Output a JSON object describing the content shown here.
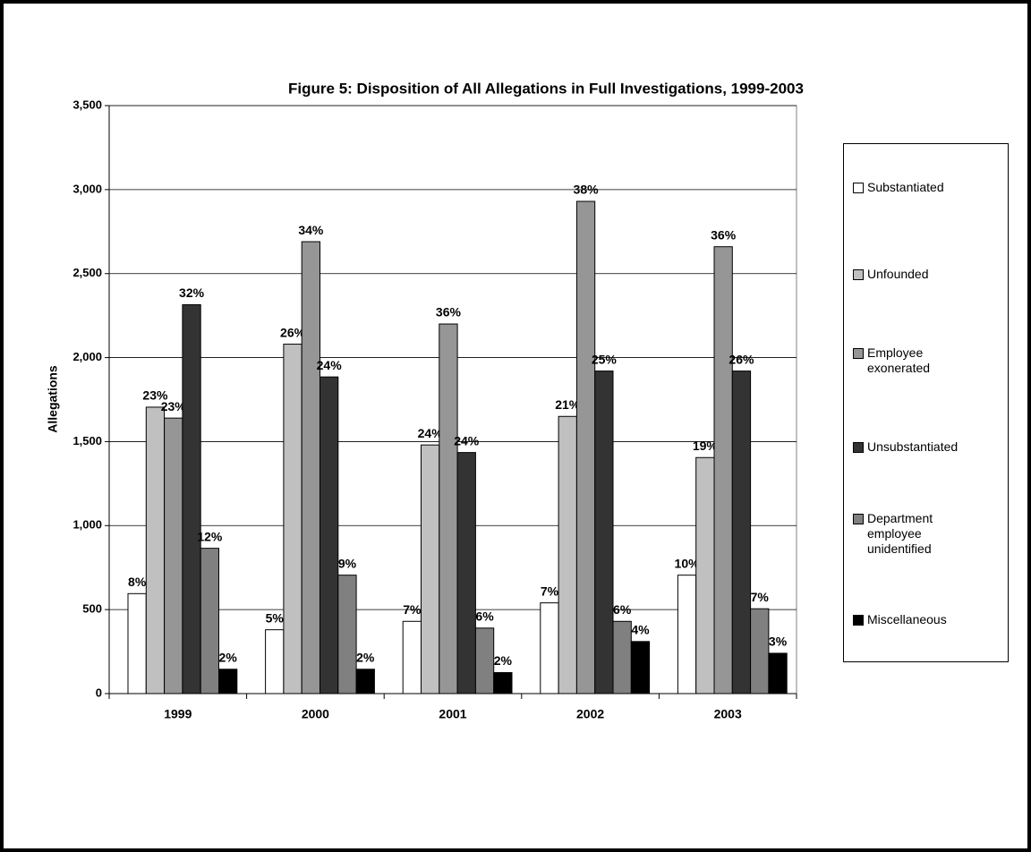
{
  "chart_data": {
    "type": "bar",
    "title": "Figure 5: Disposition of All Allegations in Full Investigations, 1999-2003",
    "y_label": "Allegations",
    "categories": [
      "1999",
      "2000",
      "2001",
      "2002",
      "2003"
    ],
    "series": [
      {
        "name": "Substantiated",
        "color": "#ffffff",
        "values": [
          595,
          380,
          430,
          540,
          705
        ],
        "value_labels": [
          "8%",
          "5%",
          "7%",
          "7%",
          "10%"
        ]
      },
      {
        "name": "Unfounded",
        "color": "#c0c0c0",
        "values": [
          1705,
          2080,
          1480,
          1650,
          1405
        ],
        "value_labels": [
          "23%",
          "26%",
          "24%",
          "21%",
          "19%"
        ]
      },
      {
        "name": "Employee exonerated",
        "color": "#969696",
        "values": [
          1640,
          2690,
          2200,
          2930,
          2660
        ],
        "value_labels": [
          "23%",
          "34%",
          "36%",
          "38%",
          "36%"
        ]
      },
      {
        "name": "Unsubstantiated",
        "color": "#333333",
        "values": [
          2315,
          1885,
          1435,
          1920,
          1920
        ],
        "value_labels": [
          "32%",
          "24%",
          "24%",
          "25%",
          "26%"
        ]
      },
      {
        "name": "Department employee unidentified",
        "color": "#808080",
        "values": [
          865,
          705,
          390,
          430,
          505
        ],
        "value_labels": [
          "12%",
          "9%",
          "6%",
          "6%",
          "7%"
        ]
      },
      {
        "name": "Miscellaneous",
        "color": "#000000",
        "values": [
          145,
          145,
          125,
          310,
          240
        ],
        "value_labels": [
          "2%",
          "2%",
          "2%",
          "4%",
          "3%"
        ]
      }
    ],
    "ylim": [
      0,
      3500
    ],
    "yticks": [
      0,
      500,
      {
        "value": 1000,
        "label": "1,000"
      },
      {
        "value": 1500,
        "label": "1,500"
      },
      {
        "value": 2000,
        "label": "2,000"
      },
      {
        "value": 2500,
        "label": "2,500"
      },
      {
        "value": 3000,
        "label": "3,000"
      },
      {
        "value": 3500,
        "label": "3,500"
      }
    ],
    "grid": true,
    "legend": "right"
  }
}
